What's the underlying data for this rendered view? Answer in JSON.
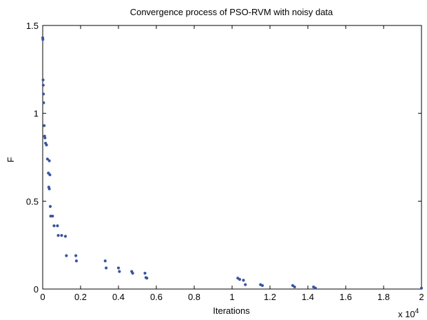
{
  "chart_data": {
    "type": "scatter",
    "title": "Convergence process of PSO-RVM with noisy data",
    "xlabel": "Iterations",
    "ylabel": "F",
    "xlim": [
      0,
      20000
    ],
    "ylim": [
      0,
      1.5
    ],
    "x_tick_values": [
      0,
      2000,
      4000,
      6000,
      8000,
      10000,
      12000,
      14000,
      16000,
      18000,
      20000
    ],
    "x_tick_labels": [
      "0",
      "0.2",
      "0.4",
      "0.6",
      "0.8",
      "1",
      "1.2",
      "1.4",
      "1.6",
      "1.8",
      "2"
    ],
    "x_multiplier_base": "x 10",
    "x_multiplier_exp": "4",
    "y_tick_values": [
      0,
      0.5,
      1,
      1.5
    ],
    "y_tick_labels": [
      "0",
      "0.5",
      "1",
      "1.5"
    ],
    "grid": false,
    "marker_color": "#3a55a0",
    "series": [
      {
        "points": [
          [
            0,
            1.43
          ],
          [
            10,
            1.42
          ],
          [
            20,
            1.19
          ],
          [
            30,
            1.16
          ],
          [
            40,
            1.11
          ],
          [
            50,
            1.06
          ],
          [
            80,
            0.93
          ],
          [
            100,
            0.87
          ],
          [
            120,
            0.86
          ],
          [
            150,
            0.83
          ],
          [
            200,
            0.82
          ],
          [
            250,
            0.74
          ],
          [
            350,
            0.73
          ],
          [
            300,
            0.66
          ],
          [
            380,
            0.65
          ],
          [
            320,
            0.58
          ],
          [
            350,
            0.57
          ],
          [
            400,
            0.47
          ],
          [
            420,
            0.415
          ],
          [
            520,
            0.415
          ],
          [
            600,
            0.36
          ],
          [
            780,
            0.36
          ],
          [
            820,
            0.305
          ],
          [
            1000,
            0.305
          ],
          [
            1200,
            0.3
          ],
          [
            1250,
            0.19
          ],
          [
            1750,
            0.19
          ],
          [
            1780,
            0.16
          ],
          [
            3300,
            0.16
          ],
          [
            3350,
            0.12
          ],
          [
            4000,
            0.12
          ],
          [
            4050,
            0.1
          ],
          [
            4700,
            0.1
          ],
          [
            4750,
            0.09
          ],
          [
            5400,
            0.09
          ],
          [
            5450,
            0.065
          ],
          [
            5500,
            0.062
          ],
          [
            10300,
            0.062
          ],
          [
            10400,
            0.055
          ],
          [
            10600,
            0.05
          ],
          [
            10700,
            0.025
          ],
          [
            11500,
            0.025
          ],
          [
            11600,
            0.02
          ],
          [
            13200,
            0.02
          ],
          [
            13300,
            0.012
          ],
          [
            14300,
            0.012
          ],
          [
            14400,
            0.005
          ],
          [
            20000,
            0.005
          ]
        ]
      }
    ]
  }
}
